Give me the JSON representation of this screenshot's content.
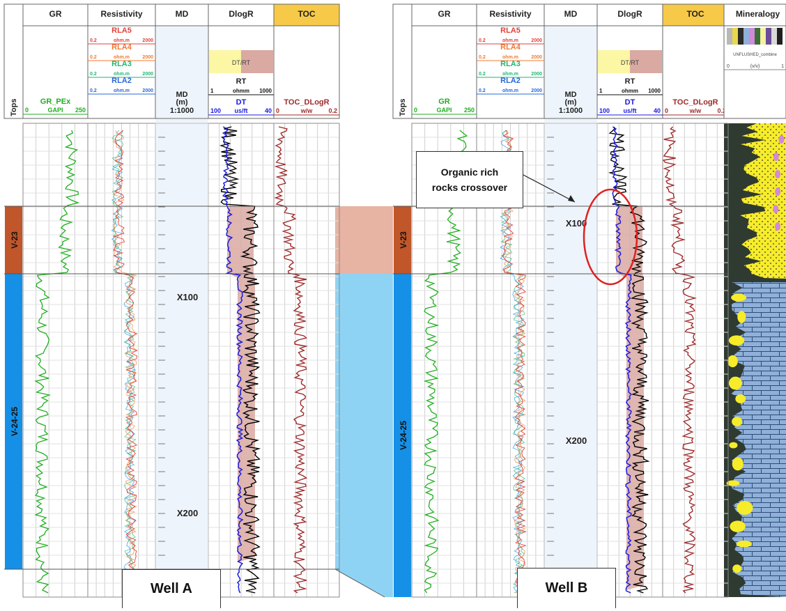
{
  "wellA": {
    "name": "Well A",
    "track_titles": [
      "GR",
      "Resistivity",
      "MD",
      "DlogR",
      "TOC"
    ],
    "tops_label": "Tops",
    "gr": {
      "curve": "GR_PEx",
      "min": "0",
      "unit": "GAPI",
      "max": "250"
    },
    "resistivity": [
      {
        "curve": "RLA5",
        "min": "0.2",
        "unit": "ohm.m",
        "max": "2000",
        "color": "#e0403a"
      },
      {
        "curve": "RLA4",
        "min": "0.2",
        "unit": "ohm.m",
        "max": "2000",
        "color": "#f07a30"
      },
      {
        "curve": "RLA3",
        "min": "0.2",
        "unit": "ohm.m",
        "max": "2000",
        "color": "#22b573"
      },
      {
        "curve": "RLA2",
        "min": "0.2",
        "unit": "ohm.m",
        "max": "2000",
        "color": "#2a68d8"
      }
    ],
    "md": {
      "line1": "MD",
      "line2": "(m)",
      "scale": "1:1000",
      "depth1": "X100",
      "depth2": "X200"
    },
    "dlogr": {
      "fill_label": "DT/RT",
      "rt_curve": "RT",
      "rt_min": "1",
      "rt_unit": "ohmm",
      "rt_max": "1000",
      "dt_curve": "DT",
      "dt_min": "100",
      "dt_unit": "us/ft",
      "dt_max": "40"
    },
    "toc": {
      "curve": "TOC_DLogR",
      "min": "0",
      "unit": "w/w",
      "max": "0.2"
    },
    "zones": [
      "V-23",
      "V-24-25"
    ]
  },
  "wellB": {
    "name": "Well B",
    "track_titles": [
      "GR",
      "Resistivity",
      "MD",
      "DlogR",
      "TOC",
      "Mineralogy"
    ],
    "tops_label": "Tops",
    "gr": {
      "curve": "GR",
      "min": "0",
      "unit": "GAPI",
      "max": "250"
    },
    "resistivity": [
      {
        "curve": "RLA5",
        "min": "0.2",
        "unit": "ohm.m",
        "max": "2000",
        "color": "#e0403a"
      },
      {
        "curve": "RLA4",
        "min": "0.2",
        "unit": "ohm.m",
        "max": "2000",
        "color": "#f07a30"
      },
      {
        "curve": "RLA3",
        "min": "0.2",
        "unit": "ohm.m",
        "max": "2000",
        "color": "#22b573"
      },
      {
        "curve": "RLA2",
        "min": "0.2",
        "unit": "ohm.m",
        "max": "2000",
        "color": "#2a68d8"
      }
    ],
    "md": {
      "line1": "MD",
      "line2": "(m)",
      "scale": "1:1000",
      "depth1": "X100",
      "depth2": "X200"
    },
    "dlogr": {
      "fill_label": "DT/RT",
      "rt_curve": "RT",
      "rt_min": "1",
      "rt_unit": "ohmm",
      "rt_max": "1000",
      "dt_curve": "DT",
      "dt_min": "100",
      "dt_unit": "us/ft",
      "dt_max": "40"
    },
    "toc": {
      "curve": "TOC_DLogR",
      "min": "0",
      "unit": "w/w",
      "max": "0.2"
    },
    "mineralogy": {
      "legend": "UNFLUSHED_combine",
      "min": "0",
      "unit": "(v/v)",
      "max": "1"
    },
    "zones": [
      "V-23",
      "V-24-25"
    ]
  },
  "callout": {
    "line1": "Organic rich",
    "line2": "rocks crossover"
  },
  "colors": {
    "toc_header": "#f7c948",
    "gr": "#1fae1f",
    "dt": "#1a1adf",
    "rt": "#000000",
    "toc_curve": "#9e2a2a",
    "crossover_fill": "#d9a9a2",
    "zone_v23": "#c0562a",
    "zone_v2425": "#1590e6",
    "corr_v23": "#e7b3a3",
    "corr_v2425": "#8fd3f4",
    "md_track": "#eef4fb",
    "ellipse": "#e02020",
    "dlogr_yellow": "#fbf7a4",
    "dlogr_pink": "#d9a9a2"
  }
}
